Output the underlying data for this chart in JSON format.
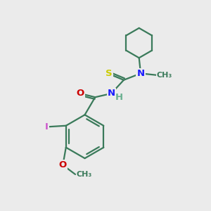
{
  "bg_color": "#ebebeb",
  "bond_color": "#3a7a5a",
  "bond_width": 1.6,
  "atom_colors": {
    "S": "#cccc00",
    "N": "#1a1aff",
    "O": "#cc0000",
    "I": "#cc55cc",
    "C": "#3a7a5a",
    "H": "#6ab090"
  },
  "font_size_atom": 9.5,
  "font_size_label": 8.0
}
